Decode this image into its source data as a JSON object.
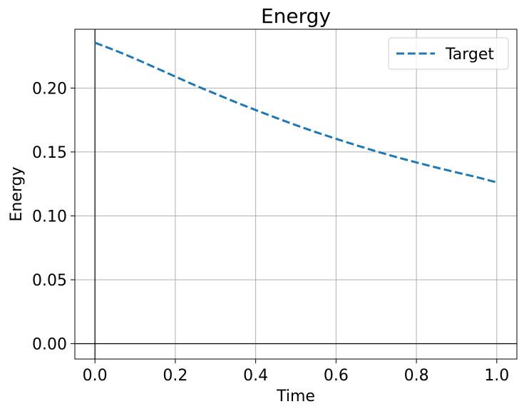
{
  "chart_data": {
    "type": "line",
    "title": "Energy",
    "xlabel": "Time",
    "ylabel": "Energy",
    "xlim": [
      -0.05,
      1.05
    ],
    "ylim": [
      -0.012,
      0.246
    ],
    "xticks": [
      0.0,
      0.2,
      0.4,
      0.6,
      0.8,
      1.0
    ],
    "xtick_labels": [
      "0.0",
      "0.2",
      "0.4",
      "0.6",
      "0.8",
      "1.0"
    ],
    "yticks": [
      0.0,
      0.05,
      0.1,
      0.15,
      0.2
    ],
    "ytick_labels": [
      "0.00",
      "0.05",
      "0.10",
      "0.15",
      "0.20"
    ],
    "grid": true,
    "zero_lines": true,
    "legend_position": "top-right",
    "series": [
      {
        "name": "Target",
        "style": "dashed",
        "color": "#1f77b4",
        "x": [
          0.0,
          0.05,
          0.1,
          0.15,
          0.2,
          0.25,
          0.3,
          0.35,
          0.4,
          0.45,
          0.5,
          0.55,
          0.6,
          0.65,
          0.7,
          0.75,
          0.8,
          0.85,
          0.9,
          0.95,
          1.0
        ],
        "y": [
          0.2355,
          0.2295,
          0.223,
          0.216,
          0.209,
          0.202,
          0.1955,
          0.189,
          0.1828,
          0.1768,
          0.171,
          0.1655,
          0.1603,
          0.1553,
          0.1505,
          0.146,
          0.1418,
          0.1378,
          0.134,
          0.1303,
          0.1262
        ]
      }
    ]
  },
  "colors": {
    "grid": "#b0b0b0",
    "axis": "#000000",
    "zero_line": "#000000",
    "legend_border": "#cccccc"
  }
}
